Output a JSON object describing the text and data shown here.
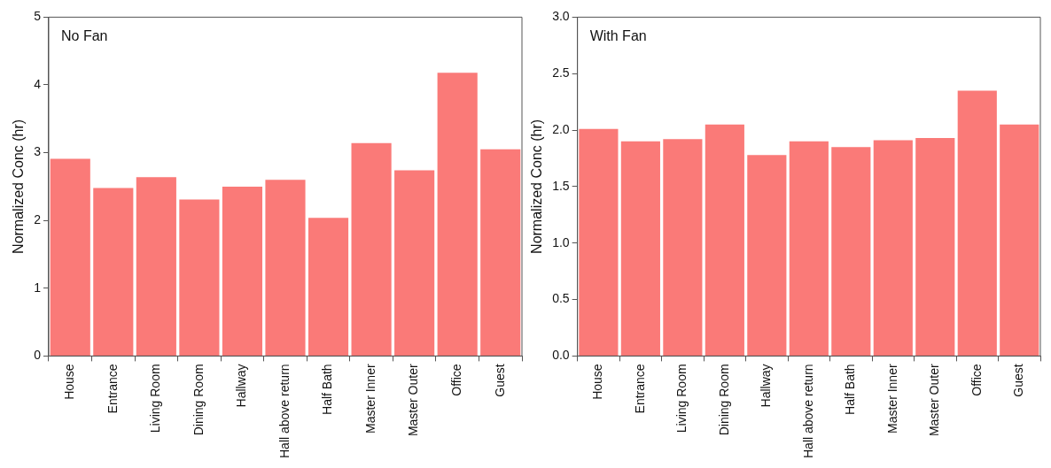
{
  "chart_data": [
    {
      "type": "bar",
      "title": "No Fan",
      "ylabel": "Normalized Conc (hr)",
      "categories": [
        "House",
        "Entrance",
        "Living Room",
        "Dining Room",
        "Hallway",
        "Hall above return",
        "Half Bath",
        "Master Inner",
        "Master Outer",
        "Office",
        "Guest"
      ],
      "values": [
        2.91,
        2.48,
        2.64,
        2.31,
        2.5,
        2.6,
        2.04,
        3.14,
        2.74,
        4.18,
        3.05
      ],
      "color": "#fa7a78",
      "ylim": [
        0,
        5
      ],
      "yticks": [
        0,
        1,
        2,
        3,
        4,
        5
      ],
      "grid": false,
      "legend": false
    },
    {
      "type": "bar",
      "title": "With Fan",
      "ylabel": "Normalized Conc (hr)",
      "categories": [
        "House",
        "Entrance",
        "Living Room",
        "Dining Room",
        "Hallway",
        "Hall above return",
        "Half Bath",
        "Master Inner",
        "Master Outer",
        "Office",
        "Guest"
      ],
      "values": [
        2.01,
        1.9,
        1.92,
        2.05,
        1.78,
        1.9,
        1.85,
        1.91,
        1.93,
        2.35,
        2.05
      ],
      "color": "#fa7a78",
      "ylim": [
        0,
        3
      ],
      "yticks": [
        {
          "value": 0,
          "label": "0.0"
        },
        {
          "value": 0.5,
          "label": "0.5"
        },
        {
          "value": 1,
          "label": "1.0"
        },
        {
          "value": 1.5,
          "label": "1.5"
        },
        {
          "value": 2,
          "label": "2.0"
        },
        {
          "value": 2.5,
          "label": "2.5"
        },
        {
          "value": 3,
          "label": "3.0"
        }
      ],
      "grid": false,
      "legend": false
    }
  ]
}
